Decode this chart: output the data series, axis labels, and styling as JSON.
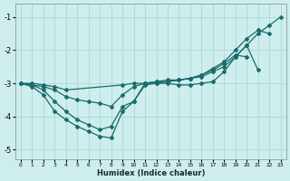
{
  "background_color": "#ceeeed",
  "grid_color": "#a8d8d8",
  "line_color": "#1a6b6b",
  "xlabel": "Humidex (Indice chaleur)",
  "xlim": [
    -0.5,
    23.5
  ],
  "ylim": [
    -5.3,
    -0.6
  ],
  "yticks": [
    -5,
    -4,
    -3,
    -2,
    -1
  ],
  "xticks": [
    0,
    1,
    2,
    3,
    4,
    5,
    6,
    7,
    8,
    9,
    10,
    11,
    12,
    13,
    14,
    15,
    16,
    17,
    18,
    19,
    20,
    21,
    22,
    23
  ],
  "lines": [
    {
      "x": [
        0,
        1,
        2,
        3,
        4,
        5,
        6,
        7,
        8,
        9,
        10,
        11,
        12,
        13,
        14,
        15,
        16,
        17,
        18,
        19,
        20,
        21,
        22,
        23
      ],
      "y": [
        -3.0,
        -3.1,
        -3.35,
        -3.85,
        -4.1,
        -4.3,
        -4.45,
        -4.6,
        -4.65,
        -3.85,
        -3.55,
        -3.0,
        -3.0,
        -3.0,
        -3.05,
        -3.05,
        -3.0,
        -2.95,
        -2.65,
        -2.2,
        -1.85,
        -1.5,
        -1.25,
        -1.0
      ]
    },
    {
      "x": [
        0,
        1,
        2,
        3,
        4,
        5,
        6,
        7,
        8,
        9,
        10,
        11,
        12,
        13,
        14,
        15,
        16,
        17,
        18,
        19,
        20,
        21,
        22
      ],
      "y": [
        -3.0,
        -3.05,
        -3.2,
        -3.55,
        -3.85,
        -4.1,
        -4.25,
        -4.4,
        -4.3,
        -3.7,
        -3.55,
        -3.05,
        -3.0,
        -2.95,
        -2.9,
        -2.85,
        -2.75,
        -2.55,
        -2.35,
        -2.0,
        -1.65,
        -1.4,
        -1.5
      ]
    },
    {
      "x": [
        0,
        1,
        2,
        3,
        4,
        5,
        6,
        7,
        8,
        9,
        10,
        11,
        12,
        13,
        14,
        15,
        16,
        17,
        18,
        19,
        20,
        21
      ],
      "y": [
        -3.0,
        -3.05,
        -3.1,
        -3.2,
        -3.4,
        -3.5,
        -3.55,
        -3.6,
        -3.7,
        -3.35,
        -3.1,
        -3.0,
        -2.95,
        -2.95,
        -2.9,
        -2.85,
        -2.8,
        -2.65,
        -2.5,
        -2.2,
        -1.85,
        -2.6
      ]
    },
    {
      "x": [
        0,
        1,
        2,
        3,
        4,
        9,
        10,
        11,
        12,
        13,
        14,
        15,
        16,
        17,
        18,
        19,
        20
      ],
      "y": [
        -3.0,
        -3.0,
        -3.05,
        -3.1,
        -3.2,
        -3.05,
        -3.0,
        -3.0,
        -2.95,
        -2.9,
        -2.9,
        -2.85,
        -2.75,
        -2.6,
        -2.4,
        -2.15,
        -2.2
      ]
    }
  ]
}
